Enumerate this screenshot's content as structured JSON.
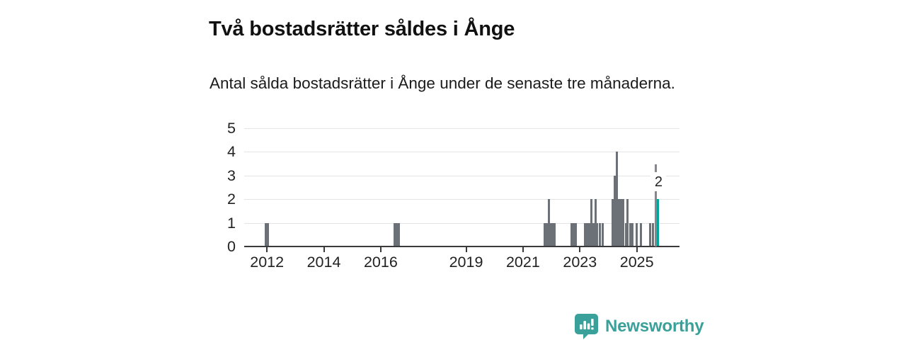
{
  "header": {
    "title": "Två bostadsrätter såldes i Ånge",
    "subtitle": "Antal sålda bostadsrätter i Ånge under de senaste tre månaderna."
  },
  "branding": {
    "name": "Newsworthy",
    "logo_icon": "speech-bubble-bar-chart-icon",
    "color": "#3aa19a"
  },
  "colors": {
    "bar": "#6c7077",
    "highlight": "#00a69c",
    "gridline": "#e4e4e4",
    "axis": "#3a3a3c",
    "annotation_line": "#85878c"
  },
  "chart_data": {
    "type": "bar",
    "title": "Två bostadsrätter såldes i Ånge",
    "subtitle": "Antal sålda bostadsrätter i Ånge under de senaste tre månaderna.",
    "xlabel": "",
    "ylabel": "",
    "ylim": [
      0,
      5
    ],
    "yticks": [
      0,
      1,
      2,
      3,
      4,
      5
    ],
    "xticks": [
      2012,
      2014,
      2016,
      2019,
      2021,
      2023,
      2025
    ],
    "x_domain": [
      2011.2,
      2026.5
    ],
    "grid": "horizontal",
    "legend": "none",
    "bars": [
      {
        "x": 2011.95,
        "value": 1
      },
      {
        "x": 2012.02,
        "value": 1
      },
      {
        "x": 2016.48,
        "value": 1
      },
      {
        "x": 2016.55,
        "value": 1
      },
      {
        "x": 2016.63,
        "value": 1
      },
      {
        "x": 2021.75,
        "value": 1
      },
      {
        "x": 2021.83,
        "value": 1
      },
      {
        "x": 2021.9,
        "value": 2
      },
      {
        "x": 2021.98,
        "value": 1
      },
      {
        "x": 2022.05,
        "value": 1
      },
      {
        "x": 2022.12,
        "value": 1
      },
      {
        "x": 2022.7,
        "value": 1
      },
      {
        "x": 2022.77,
        "value": 1
      },
      {
        "x": 2022.85,
        "value": 1
      },
      {
        "x": 2023.17,
        "value": 1
      },
      {
        "x": 2023.24,
        "value": 1
      },
      {
        "x": 2023.32,
        "value": 1
      },
      {
        "x": 2023.39,
        "value": 2
      },
      {
        "x": 2023.47,
        "value": 1
      },
      {
        "x": 2023.54,
        "value": 2
      },
      {
        "x": 2023.61,
        "value": 1
      },
      {
        "x": 2023.69,
        "value": 1
      },
      {
        "x": 2023.81,
        "value": 1
      },
      {
        "x": 2024.14,
        "value": 2
      },
      {
        "x": 2024.21,
        "value": 3
      },
      {
        "x": 2024.29,
        "value": 4
      },
      {
        "x": 2024.36,
        "value": 2
      },
      {
        "x": 2024.44,
        "value": 2
      },
      {
        "x": 2024.53,
        "value": 2
      },
      {
        "x": 2024.61,
        "value": 1
      },
      {
        "x": 2024.68,
        "value": 2
      },
      {
        "x": 2024.78,
        "value": 1
      },
      {
        "x": 2024.85,
        "value": 1
      },
      {
        "x": 2025.0,
        "value": 1
      },
      {
        "x": 2025.15,
        "value": 1
      },
      {
        "x": 2025.47,
        "value": 1
      },
      {
        "x": 2025.57,
        "value": 1
      },
      {
        "x": 2025.75,
        "value": 2,
        "highlighted": true
      }
    ],
    "annotation": {
      "label": "2",
      "marker": "dashed-line-on-highlighted-bar"
    }
  }
}
